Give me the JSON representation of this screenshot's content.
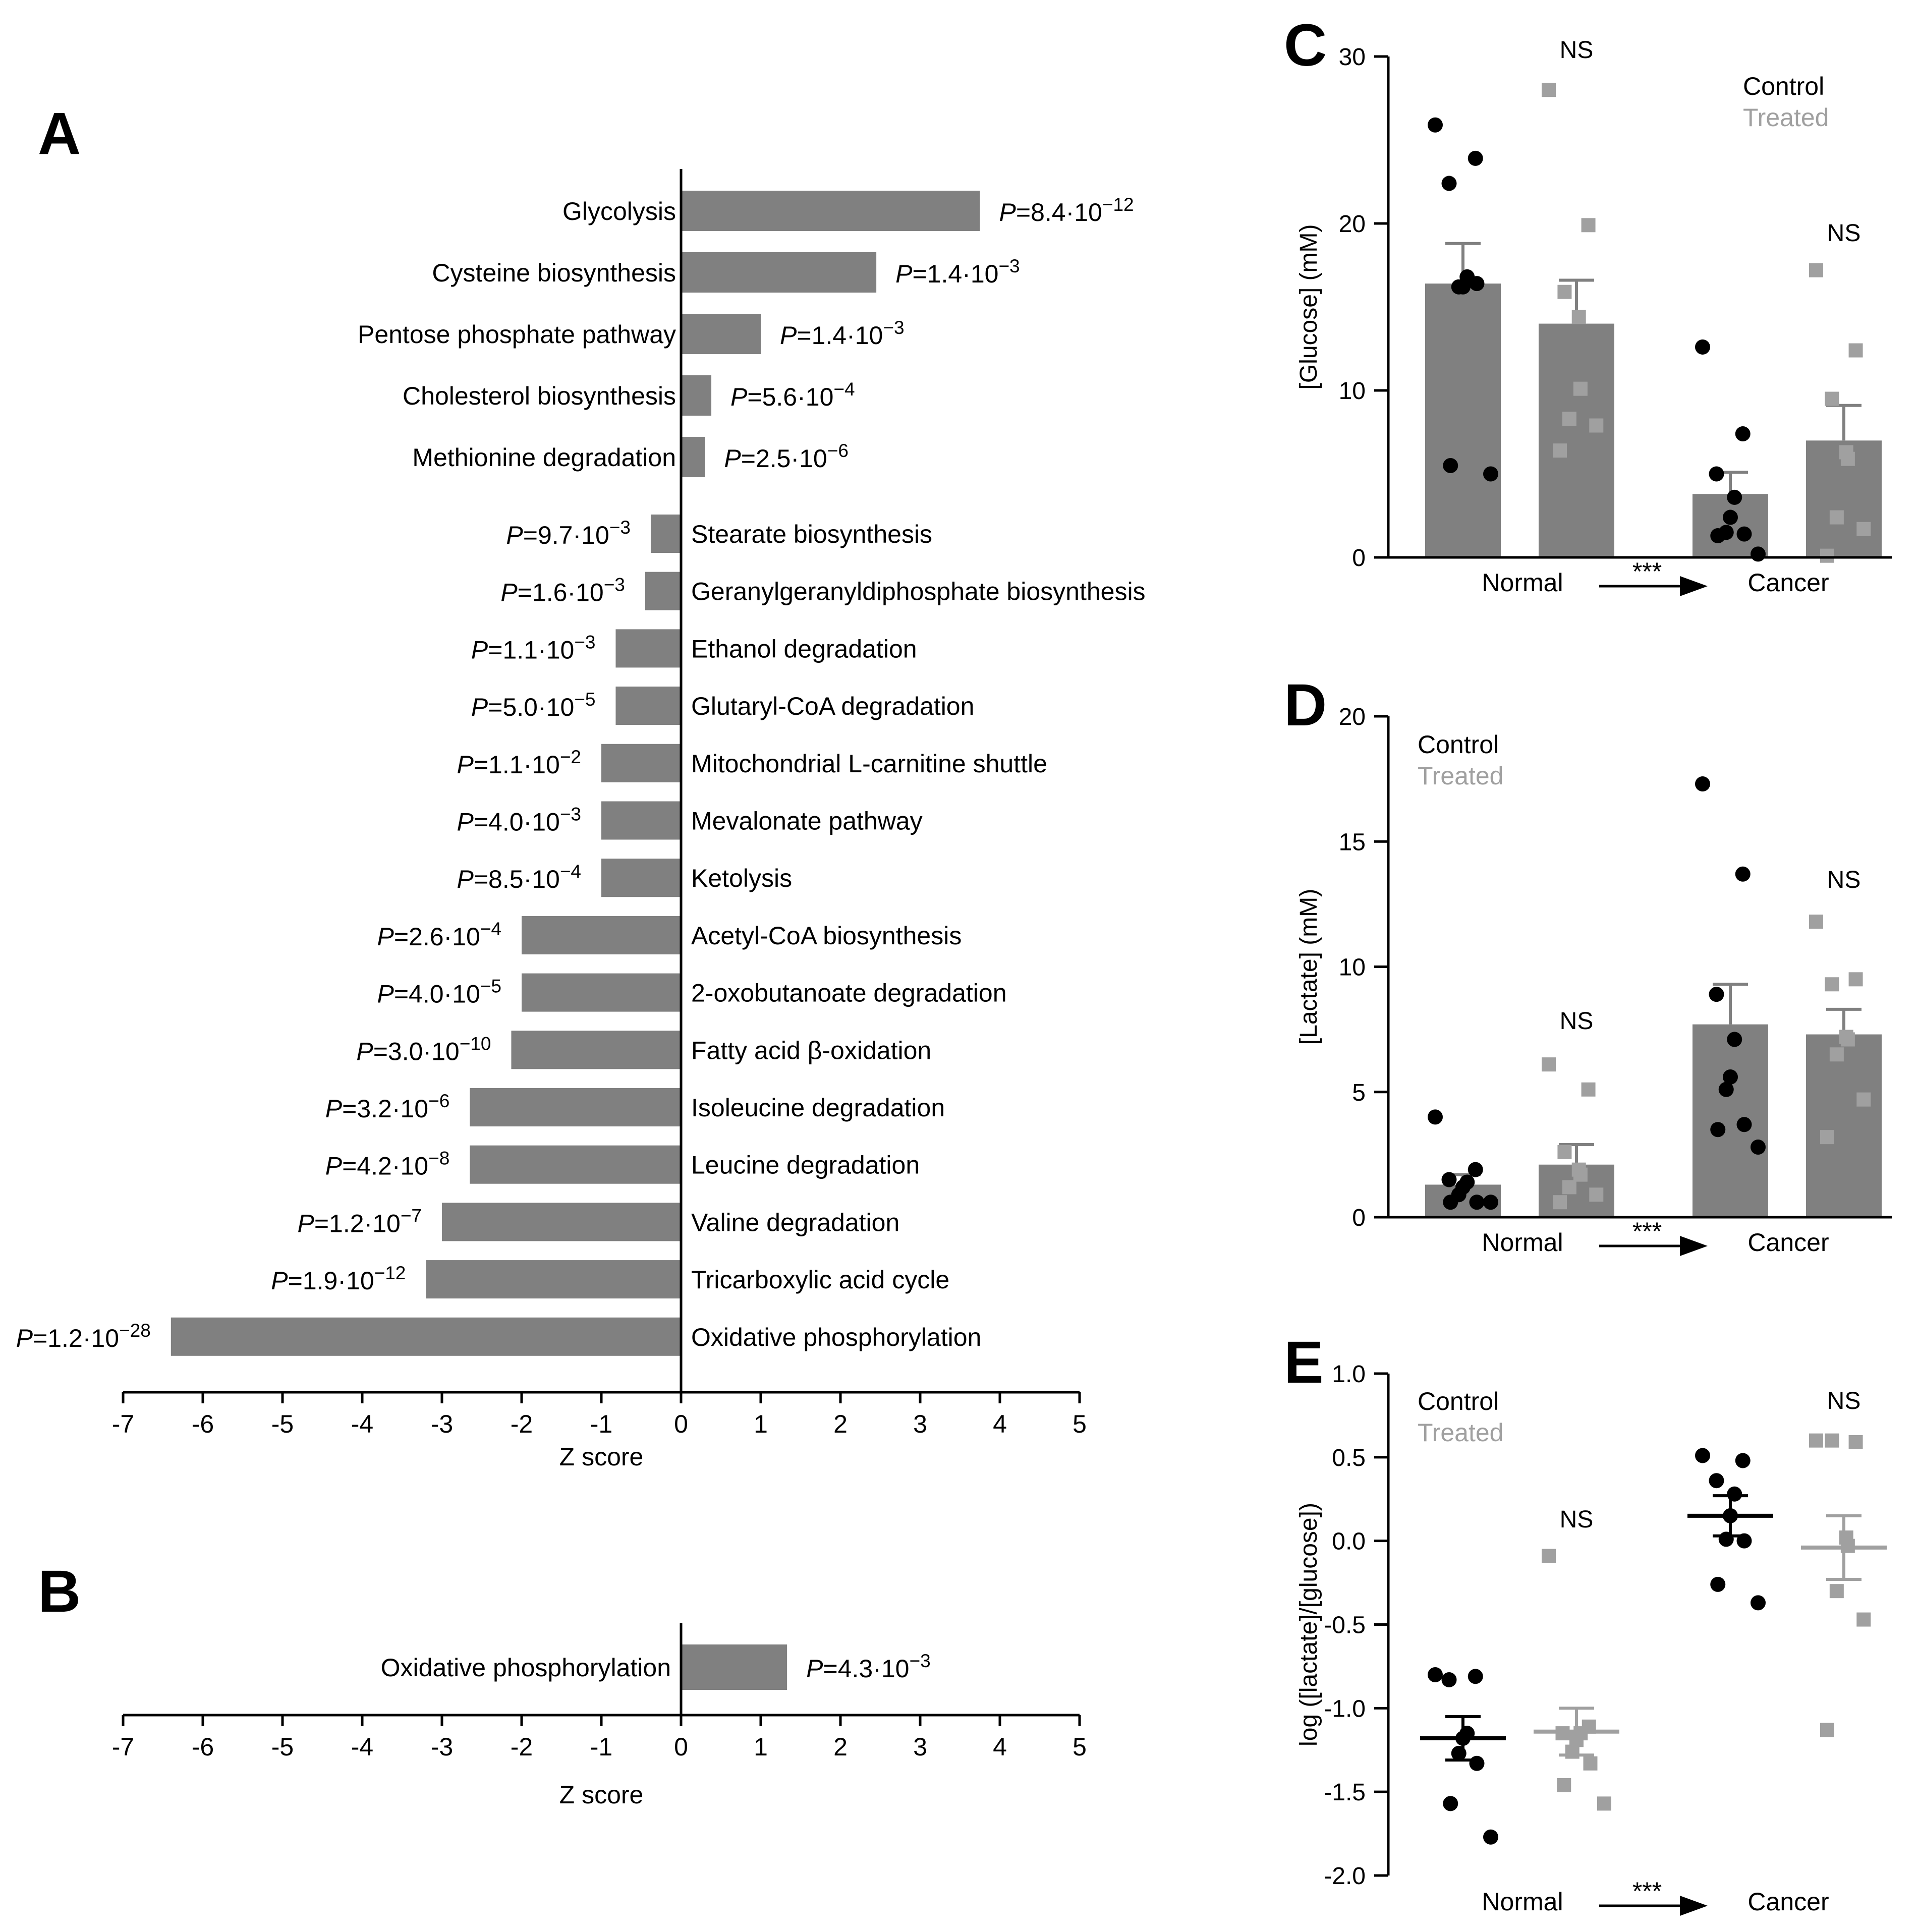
{
  "chart_data": {
    "panels": {
      "A": {
        "letter": "A",
        "type": "bar",
        "orientation": "horizontal",
        "xlabel": "Z score",
        "xlim": [
          -7,
          5
        ],
        "xticks": [
          "-7",
          "-6",
          "-5",
          "-4",
          "-3",
          "-2",
          "-1",
          "0",
          "1",
          "2",
          "3",
          "4",
          "5"
        ],
        "bar_color": "#808080",
        "up": [
          {
            "label": "Glycolysis",
            "z": 3.75,
            "p_mant": "8.4",
            "p_exp": "−12"
          },
          {
            "label": "Cysteine biosynthesis",
            "z": 2.45,
            "p_mant": "1.4",
            "p_exp": "−3"
          },
          {
            "label": "Pentose phosphate pathway",
            "z": 1.0,
            "p_mant": "1.4",
            "p_exp": "−3"
          },
          {
            "label": "Cholesterol biosynthesis",
            "z": 0.38,
            "p_mant": "5.6",
            "p_exp": "−4"
          },
          {
            "label": "Methionine degradation",
            "z": 0.3,
            "p_mant": "2.5",
            "p_exp": "−6"
          }
        ],
        "down": [
          {
            "label": "Stearate biosynthesis",
            "z": -0.38,
            "p_mant": "9.7",
            "p_exp": "−3"
          },
          {
            "label": "Geranylgeranyldiphosphate biosynthesis",
            "z": -0.45,
            "p_mant": "1.6",
            "p_exp": "−3"
          },
          {
            "label": "Ethanol degradation",
            "z": -0.82,
            "p_mant": "1.1",
            "p_exp": "−3"
          },
          {
            "label": "Glutaryl-CoA degradation",
            "z": -0.82,
            "p_mant": "5.0",
            "p_exp": "−5"
          },
          {
            "label": "Mitochondrial L-carnitine shuttle",
            "z": -1.0,
            "p_mant": "1.1",
            "p_exp": "−2"
          },
          {
            "label": "Mevalonate pathway",
            "z": -1.0,
            "p_mant": "4.0",
            "p_exp": "−3"
          },
          {
            "label": "Ketolysis",
            "z": -1.0,
            "p_mant": "8.5",
            "p_exp": "−4"
          },
          {
            "label": "Acetyl-CoA biosynthesis",
            "z": -2.0,
            "p_mant": "2.6",
            "p_exp": "−4"
          },
          {
            "label": "2-oxobutanoate degradation",
            "z": -2.0,
            "p_mant": "4.0",
            "p_exp": "−5"
          },
          {
            "label": "Fatty acid β-oxidation",
            "z": -2.13,
            "p_mant": "3.0",
            "p_exp": "−10"
          },
          {
            "label": "Isoleucine degradation",
            "z": -2.65,
            "p_mant": "3.2",
            "p_exp": "−6"
          },
          {
            "label": "Leucine degradation",
            "z": -2.65,
            "p_mant": "4.2",
            "p_exp": "−8"
          },
          {
            "label": "Valine degradation",
            "z": -3.0,
            "p_mant": "1.2",
            "p_exp": "−7"
          },
          {
            "label": "Tricarboxylic acid cycle",
            "z": -3.2,
            "p_mant": "1.9",
            "p_exp": "−12"
          },
          {
            "label": "Oxidative phosphorylation",
            "z": -6.4,
            "p_mant": "1.2",
            "p_exp": "−28"
          }
        ]
      },
      "B": {
        "letter": "B",
        "type": "bar",
        "orientation": "horizontal",
        "xlabel": "Z score",
        "xlim": [
          -7,
          5
        ],
        "xticks": [
          "-7",
          "-6",
          "-5",
          "-4",
          "-3",
          "-2",
          "-1",
          "0",
          "1",
          "2",
          "3",
          "4",
          "5"
        ],
        "up": [
          {
            "label": "Oxidative phosphorylation",
            "z": 1.33,
            "p_mant": "4.3",
            "p_exp": "−3"
          }
        ]
      },
      "C": {
        "letter": "C",
        "type": "bar+scatter",
        "ylabel": "[Glucose] (mM)",
        "ylim": [
          0,
          30
        ],
        "yticks": [
          "0",
          "10",
          "20",
          "30"
        ],
        "group_labels": [
          "Normal",
          "Cancer"
        ],
        "arrow_label": "***",
        "legend": [
          "Control",
          "Treated"
        ],
        "colors": {
          "control": "#000000",
          "treated": "#a0a0a0",
          "bar": "#808080"
        },
        "series": [
          {
            "name": "Normal Control",
            "mean": 16.4,
            "sem_upper": 18.8,
            "points": [
              25.9,
              23.9,
              22.4,
              16.8,
              16.2,
              16.2,
              16.4,
              5.5,
              5.0
            ]
          },
          {
            "name": "Normal Treated",
            "mean": 14.0,
            "sem_upper": 16.6,
            "points": [
              28.0,
              19.9,
              15.9,
              14.4,
              10.1,
              8.3,
              7.9,
              6.4
            ],
            "annotation": "NS"
          },
          {
            "name": "Cancer Control",
            "mean": 3.8,
            "sem_upper": 5.1,
            "points": [
              12.6,
              7.4,
              5.0,
              3.6,
              2.4,
              1.5,
              1.4,
              1.3,
              0.2
            ]
          },
          {
            "name": "Cancer Treated",
            "mean": 7.0,
            "sem_upper": 9.1,
            "points": [
              17.2,
              12.4,
              9.5,
              6.3,
              5.9,
              2.4,
              1.7,
              0.1
            ],
            "annotation": "NS"
          }
        ]
      },
      "D": {
        "letter": "D",
        "type": "bar+scatter",
        "ylabel": "[Lactate] (mM)",
        "ylim": [
          0,
          20
        ],
        "yticks": [
          "0",
          "5",
          "10",
          "15",
          "20"
        ],
        "group_labels": [
          "Normal",
          "Cancer"
        ],
        "arrow_label": "***",
        "legend": [
          "Control",
          "Treated"
        ],
        "colors": {
          "control": "#000000",
          "treated": "#a0a0a0",
          "bar": "#808080"
        },
        "series": [
          {
            "name": "Normal Control",
            "mean": 1.3,
            "sem_upper": 1.7,
            "points": [
              4.0,
              1.9,
              1.5,
              1.4,
              1.2,
              0.9,
              0.6,
              0.6,
              0.6
            ]
          },
          {
            "name": "Normal Treated",
            "mean": 2.1,
            "sem_upper": 2.9,
            "points": [
              6.1,
              5.1,
              2.6,
              1.9,
              1.7,
              1.2,
              0.9,
              0.6
            ],
            "annotation": "NS"
          },
          {
            "name": "Cancer Control",
            "mean": 7.7,
            "sem_upper": 9.3,
            "points": [
              17.3,
              13.7,
              8.9,
              7.1,
              5.6,
              5.1,
              3.7,
              3.5,
              2.8
            ]
          },
          {
            "name": "Cancer Treated",
            "mean": 7.3,
            "sem_upper": 8.3,
            "points": [
              11.8,
              9.5,
              9.3,
              7.2,
              7.1,
              6.5,
              4.7,
              3.2
            ],
            "annotation": "NS"
          }
        ]
      },
      "E": {
        "letter": "E",
        "type": "scatter",
        "ylabel": "log ([lactate]/[glucose])",
        "ylim": [
          -2.0,
          1.0
        ],
        "yticks": [
          "-2.0",
          "-1.5",
          "-1.0",
          "-0.5",
          "0.0",
          "0.5",
          "1.0"
        ],
        "group_labels": [
          "Normal",
          "Cancer"
        ],
        "arrow_label": "***",
        "legend": [
          "Control",
          "Treated"
        ],
        "colors": {
          "control": "#000000",
          "treated": "#a0a0a0"
        },
        "series": [
          {
            "name": "Normal Control",
            "mean": -1.18,
            "sem": 0.13,
            "points": [
              -0.8,
              -0.81,
              -0.83,
              -1.15,
              -1.18,
              -1.27,
              -1.33,
              -1.57,
              -1.77
            ]
          },
          {
            "name": "Normal Treated",
            "mean": -1.14,
            "sem": 0.14,
            "points": [
              -0.09,
              -1.11,
              -1.15,
              -1.15,
              -1.19,
              -1.26,
              -1.33,
              -1.46,
              -1.57
            ],
            "annotation": "NS"
          },
          {
            "name": "Cancer Control",
            "mean": 0.15,
            "sem": 0.12,
            "points": [
              0.51,
              0.48,
              0.36,
              0.28,
              0.15,
              0.01,
              0.0,
              -0.26,
              -0.37
            ]
          },
          {
            "name": "Cancer Treated",
            "mean": -0.04,
            "sem": 0.19,
            "points": [
              0.6,
              0.59,
              0.6,
              0.02,
              -0.03,
              -0.3,
              -0.47,
              -1.13
            ],
            "annotation": "NS"
          }
        ]
      }
    }
  }
}
